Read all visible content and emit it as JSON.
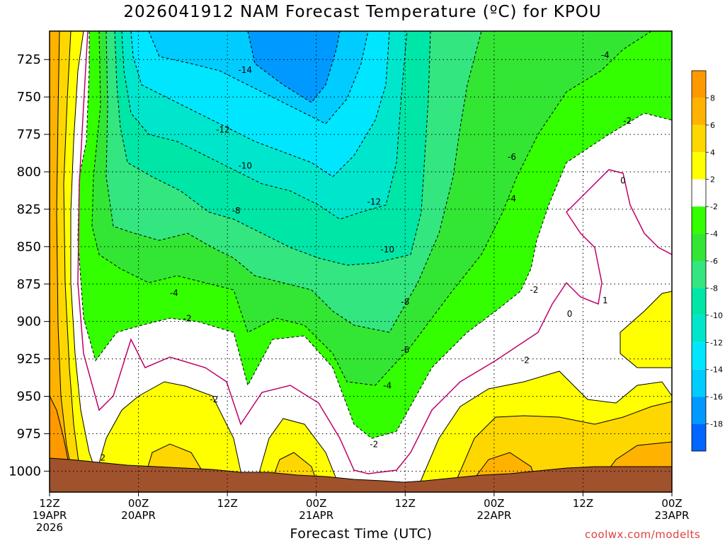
{
  "chart_data": {
    "type": "heatmap",
    "title": "2026041912 NAM Forecast Temperature (ºC) for KPOU",
    "xlabel": "Forecast Time (UTC)",
    "ylabel": "",
    "x_ticks": [
      {
        "l1": "12Z",
        "l2": "19APR",
        "l3": "2026"
      },
      {
        "l1": "00Z",
        "l2": "20APR",
        "l3": ""
      },
      {
        "l1": "12Z",
        "l2": "",
        "l3": ""
      },
      {
        "l1": "00Z",
        "l2": "21APR",
        "l3": ""
      },
      {
        "l1": "12Z",
        "l2": "",
        "l3": ""
      },
      {
        "l1": "00Z",
        "l2": "22APR",
        "l3": ""
      },
      {
        "l1": "12Z",
        "l2": "",
        "l3": ""
      },
      {
        "l1": "00Z",
        "l2": "23APR",
        "l3": ""
      }
    ],
    "x_hours": [
      0,
      12,
      24,
      36,
      48,
      60,
      72,
      84
    ],
    "xlim_hours": [
      0,
      84
    ],
    "y_ticks": [
      "725",
      "750",
      "775",
      "800",
      "825",
      "850",
      "875",
      "900",
      "925",
      "950",
      "975",
      "1000"
    ],
    "y_values": [
      725,
      750,
      775,
      800,
      825,
      850,
      875,
      900,
      925,
      950,
      975,
      1000
    ],
    "ylim_hpa": [
      706,
      1014
    ],
    "grid": true,
    "colorbar": {
      "labels": [
        "8",
        "6",
        "4",
        "2",
        "-2",
        "-4",
        "-6",
        "-8",
        "-10",
        "-12",
        "-14",
        "-16",
        "-18"
      ],
      "colors": [
        "#ff9900",
        "#ffb300",
        "#ffd700",
        "#ffff00",
        "#ffffff",
        "#33ff00",
        "#33e633",
        "#33e67f",
        "#00e6a6",
        "#00e6cc",
        "#00e6ff",
        "#00ccff",
        "#0099ff",
        "#0066ff"
      ]
    },
    "contour_labels": [
      {
        "t": "-14",
        "h": 26.4,
        "p": 732
      },
      {
        "t": "-12",
        "h": 23.4,
        "p": 772
      },
      {
        "t": "-10",
        "h": 26.4,
        "p": 796
      },
      {
        "t": "-8",
        "h": 25.2,
        "p": 826
      },
      {
        "t": "-4",
        "h": 16.8,
        "p": 881
      },
      {
        "t": "-2",
        "h": 18.6,
        "p": 898
      },
      {
        "t": "-2",
        "h": 22.2,
        "p": 952
      },
      {
        "t": "2",
        "h": 7.2,
        "p": 991
      },
      {
        "t": "-12",
        "h": 43.8,
        "p": 820
      },
      {
        "t": "-10",
        "h": 45.6,
        "p": 852
      },
      {
        "t": "-8",
        "h": 48.0,
        "p": 887
      },
      {
        "t": "-6",
        "h": 48.0,
        "p": 919
      },
      {
        "t": "-4",
        "h": 45.6,
        "p": 943
      },
      {
        "t": "-2",
        "h": 43.8,
        "p": 982
      },
      {
        "t": "-6",
        "h": 62.4,
        "p": 790
      },
      {
        "t": "-4",
        "h": 62.4,
        "p": 818
      },
      {
        "t": "-2",
        "h": 65.4,
        "p": 879
      },
      {
        "t": "-2",
        "h": 64.2,
        "p": 926
      },
      {
        "t": "0",
        "h": 70.2,
        "p": 895
      },
      {
        "t": "1",
        "h": 75.0,
        "p": 886
      },
      {
        "t": "0",
        "h": 77.4,
        "p": 806
      },
      {
        "t": "-2",
        "h": 78.0,
        "p": 766
      },
      {
        "t": "-4",
        "h": 75.0,
        "p": 722
      }
    ]
  },
  "credit": "coolwx.com/modelts"
}
